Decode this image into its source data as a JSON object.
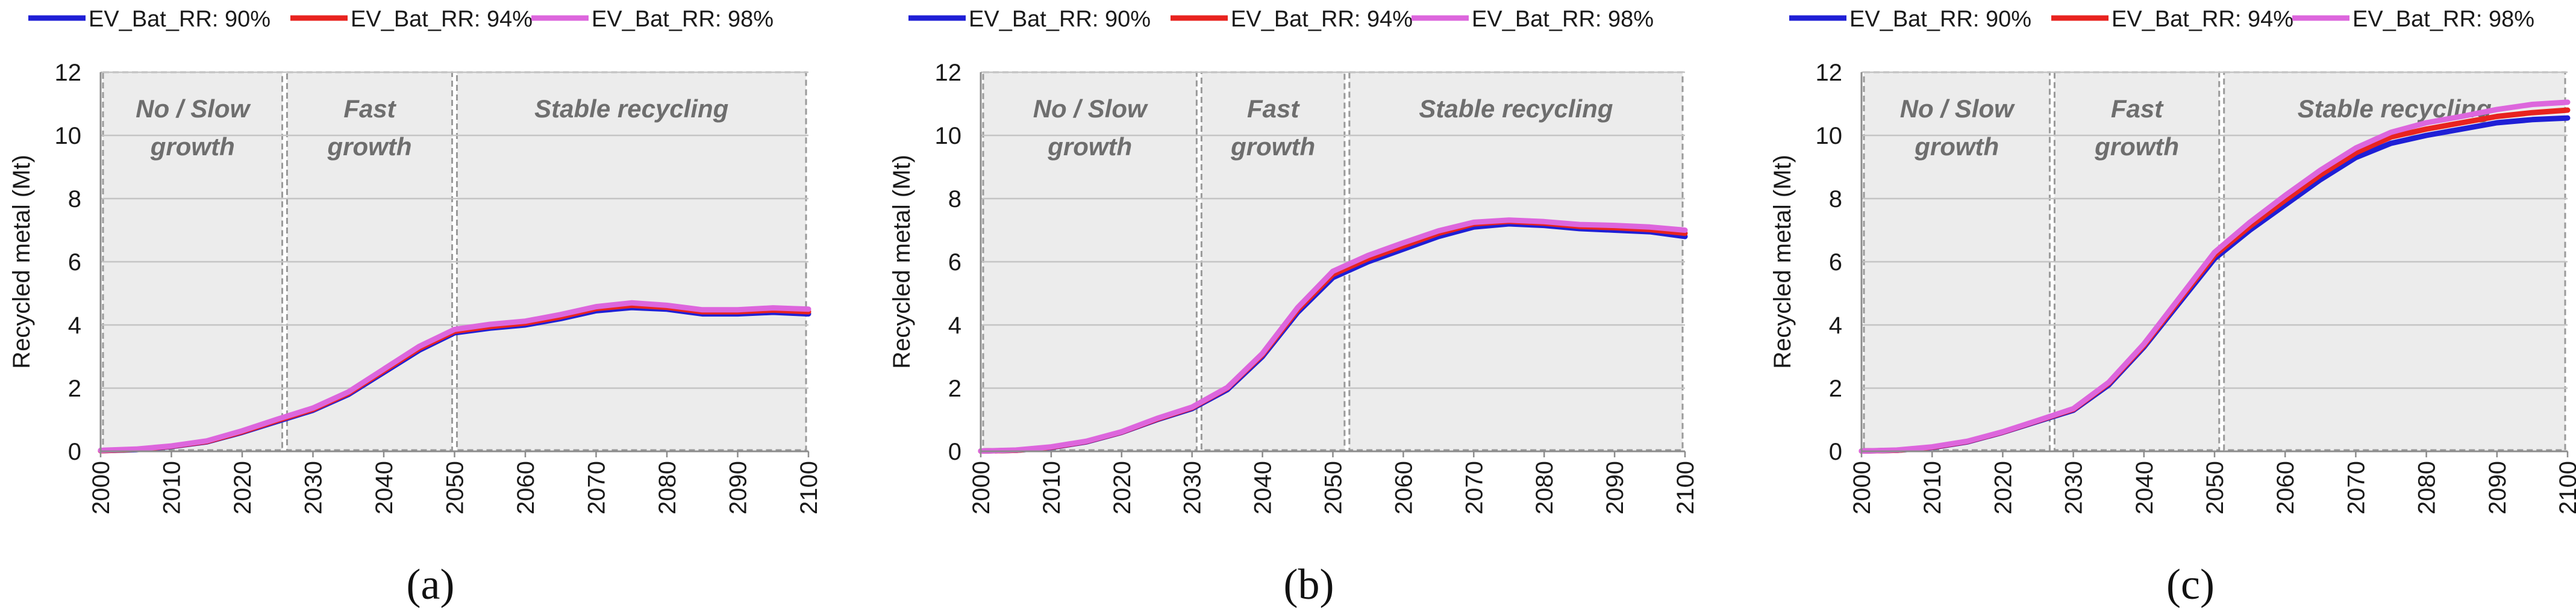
{
  "chart_data": [
    {
      "type": "line",
      "panel_label": "(a)",
      "ylabel": "Recycled metal (Mt)",
      "xlabel": "",
      "xlim": [
        2000,
        2100
      ],
      "ylim": [
        0,
        12
      ],
      "x_ticks": [
        2000,
        2010,
        2020,
        2030,
        2040,
        2050,
        2060,
        2070,
        2080,
        2090,
        2100
      ],
      "y_ticks": [
        0,
        2,
        4,
        6,
        8,
        10,
        12
      ],
      "grid": "horizontal",
      "legend_position": "top",
      "phases": [
        {
          "label_line1": "No / Slow",
          "label_line2": "growth",
          "start": 2000,
          "end": 2026
        },
        {
          "label_line1": "Fast",
          "label_line2": "growth",
          "start": 2026,
          "end": 2050
        },
        {
          "label_line1": "Stable recycling",
          "label_line2": "",
          "start": 2050,
          "end": 2100
        }
      ],
      "x": [
        2000,
        2005,
        2010,
        2015,
        2020,
        2025,
        2030,
        2035,
        2040,
        2045,
        2050,
        2055,
        2060,
        2065,
        2070,
        2075,
        2080,
        2085,
        2090,
        2095,
        2100
      ],
      "series": [
        {
          "name": "EV_Bat_RR: 90%",
          "color": "#1f1fd6",
          "values": [
            0.02,
            0.05,
            0.15,
            0.3,
            0.6,
            0.95,
            1.3,
            1.8,
            2.5,
            3.2,
            3.75,
            3.9,
            4.0,
            4.2,
            4.45,
            4.55,
            4.5,
            4.35,
            4.35,
            4.4,
            4.35
          ]
        },
        {
          "name": "EV_Bat_RR: 94%",
          "color": "#e8231f",
          "values": [
            0.02,
            0.06,
            0.16,
            0.31,
            0.62,
            0.98,
            1.33,
            1.84,
            2.55,
            3.26,
            3.8,
            3.95,
            4.06,
            4.26,
            4.52,
            4.62,
            4.56,
            4.42,
            4.42,
            4.47,
            4.42
          ]
        },
        {
          "name": "EV_Bat_RR: 98%",
          "color": "#dd66dd",
          "values": [
            0.03,
            0.07,
            0.17,
            0.33,
            0.65,
            1.02,
            1.37,
            1.88,
            2.6,
            3.32,
            3.86,
            4.02,
            4.12,
            4.33,
            4.58,
            4.7,
            4.62,
            4.48,
            4.48,
            4.54,
            4.5
          ]
        }
      ]
    },
    {
      "type": "line",
      "panel_label": "(b)",
      "ylabel": "Recycled metal (Mt)",
      "xlabel": "",
      "xlim": [
        2000,
        2100
      ],
      "ylim": [
        0,
        12
      ],
      "x_ticks": [
        2000,
        2010,
        2020,
        2030,
        2040,
        2050,
        2060,
        2070,
        2080,
        2090,
        2100
      ],
      "y_ticks": [
        0,
        2,
        4,
        6,
        8,
        10,
        12
      ],
      "grid": "horizontal",
      "legend_position": "top",
      "phases": [
        {
          "label_line1": "No / Slow",
          "label_line2": "growth",
          "start": 2000,
          "end": 2031
        },
        {
          "label_line1": "Fast",
          "label_line2": "growth",
          "start": 2031,
          "end": 2052
        },
        {
          "label_line1": "Stable recycling",
          "label_line2": "",
          "start": 2052,
          "end": 2100
        }
      ],
      "x": [
        2000,
        2005,
        2010,
        2015,
        2020,
        2025,
        2030,
        2035,
        2040,
        2045,
        2050,
        2055,
        2060,
        2065,
        2070,
        2075,
        2080,
        2085,
        2090,
        2095,
        2100
      ],
      "series": [
        {
          "name": "EV_Bat_RR: 90%",
          "color": "#1f1fd6",
          "values": [
            0.01,
            0.03,
            0.12,
            0.3,
            0.6,
            1.0,
            1.35,
            1.95,
            3.0,
            4.4,
            5.5,
            6.0,
            6.4,
            6.8,
            7.1,
            7.2,
            7.15,
            7.05,
            7.0,
            6.95,
            6.8
          ]
        },
        {
          "name": "EV_Bat_RR: 94%",
          "color": "#e8231f",
          "values": [
            0.01,
            0.03,
            0.13,
            0.31,
            0.61,
            1.02,
            1.38,
            2.0,
            3.06,
            4.48,
            5.6,
            6.1,
            6.5,
            6.9,
            7.2,
            7.28,
            7.22,
            7.12,
            7.08,
            7.02,
            6.9
          ]
        },
        {
          "name": "EV_Bat_RR: 98%",
          "color": "#dd66dd",
          "values": [
            0.01,
            0.04,
            0.14,
            0.32,
            0.62,
            1.04,
            1.4,
            2.02,
            3.1,
            4.55,
            5.7,
            6.2,
            6.6,
            6.98,
            7.25,
            7.32,
            7.27,
            7.18,
            7.15,
            7.1,
            7.0
          ]
        }
      ]
    },
    {
      "type": "line",
      "panel_label": "(c)",
      "ylabel": "Recycled metal (Mt)",
      "xlabel": "",
      "xlim": [
        2000,
        2100
      ],
      "ylim": [
        0,
        12
      ],
      "x_ticks": [
        2000,
        2010,
        2020,
        2030,
        2040,
        2050,
        2060,
        2070,
        2080,
        2090,
        2100
      ],
      "y_ticks": [
        0,
        2,
        4,
        6,
        8,
        10,
        12
      ],
      "grid": "horizontal",
      "legend_position": "top",
      "phases": [
        {
          "label_line1": "No / Slow",
          "label_line2": "growth",
          "start": 2000,
          "end": 2027
        },
        {
          "label_line1": "Fast",
          "label_line2": "growth",
          "start": 2027,
          "end": 2051
        },
        {
          "label_line1": "Stable recycling",
          "label_line2": "",
          "start": 2051,
          "end": 2100
        }
      ],
      "x": [
        2000,
        2005,
        2010,
        2015,
        2020,
        2025,
        2030,
        2035,
        2040,
        2045,
        2050,
        2055,
        2060,
        2065,
        2070,
        2075,
        2080,
        2085,
        2090,
        2095,
        2100
      ],
      "series": [
        {
          "name": "EV_Bat_RR: 90%",
          "color": "#1f1fd6",
          "values": [
            0.01,
            0.03,
            0.12,
            0.3,
            0.6,
            0.95,
            1.3,
            2.1,
            3.3,
            4.7,
            6.1,
            7.0,
            7.8,
            8.6,
            9.3,
            9.75,
            10.0,
            10.2,
            10.4,
            10.5,
            10.55
          ]
        },
        {
          "name": "EV_Bat_RR: 94%",
          "color": "#e8231f",
          "values": [
            0.01,
            0.03,
            0.13,
            0.31,
            0.61,
            0.97,
            1.33,
            2.15,
            3.35,
            4.78,
            6.2,
            7.12,
            7.95,
            8.75,
            9.45,
            9.95,
            10.2,
            10.4,
            10.6,
            10.72,
            10.8
          ]
        },
        {
          "name": "EV_Bat_RR: 98%",
          "color": "#dd66dd",
          "values": [
            0.01,
            0.04,
            0.14,
            0.32,
            0.62,
            0.98,
            1.35,
            2.18,
            3.4,
            4.85,
            6.3,
            7.25,
            8.1,
            8.9,
            9.6,
            10.1,
            10.4,
            10.6,
            10.82,
            10.98,
            11.05
          ]
        }
      ]
    }
  ]
}
